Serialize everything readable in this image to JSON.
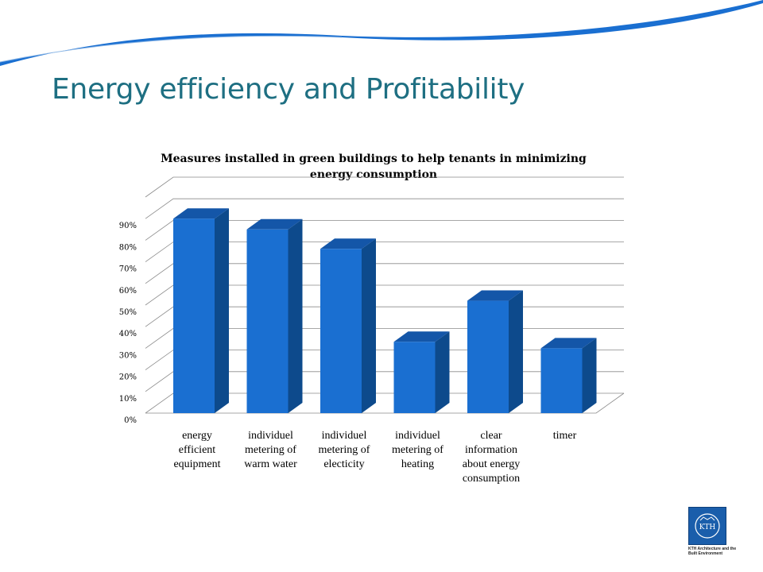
{
  "slide": {
    "title": "Energy efficiency and Profitability"
  },
  "chart_data": {
    "type": "bar",
    "title": "Measures installed in green buildings to help tenants in minimizing energy consumption",
    "categories": [
      "energy efficient equipment",
      "individuel metering of warm water",
      "individuel metering of electicity",
      "individuel metering of heating",
      "clear information about energy consumption",
      "timer"
    ],
    "category_lines": [
      [
        "energy",
        "efficient",
        "equipment"
      ],
      [
        "individuel",
        "metering of",
        "warm water"
      ],
      [
        "individuel",
        "metering of",
        "electicity"
      ],
      [
        "individuel",
        "metering of",
        "heating"
      ],
      [
        "clear",
        "information",
        "about energy",
        "consumption"
      ],
      [
        "timer"
      ]
    ],
    "values": [
      0.9,
      0.85,
      0.76,
      0.33,
      0.52,
      0.3
    ],
    "ylim": [
      0,
      1
    ],
    "yticks": [
      "0%",
      "10%",
      "20%",
      "30%",
      "40%",
      "50%",
      "60%",
      "70%",
      "80%",
      "90%"
    ],
    "grid": true,
    "three_d": true,
    "bar_color": "#1a6fd1",
    "bar_side_color": "#0d4a8c",
    "bar_top_color": "#1456a8"
  },
  "logo": {
    "text": "KTH",
    "caption": "KTH Architecture and the Built Environment"
  }
}
